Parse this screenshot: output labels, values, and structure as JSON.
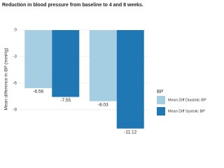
{
  "chart_data": {
    "type": "bar",
    "title": "Reduction in blood pressure from baseline to 4 and 8 weeks.",
    "y_label": "Mean difference in BP (mmHg)",
    "categories": [
      null,
      null
    ],
    "series": [
      {
        "name": "Mean Diff Diastolic BP",
        "color": "#a6cee3",
        "values": [
          -6.56,
          -8.03
        ]
      },
      {
        "name": "Mean Diff Systolic BP",
        "color": "#1f78b4",
        "values": [
          -7.55,
          -11.12
        ]
      }
    ],
    "legend_title": "BP",
    "legend": "right",
    "ylim": [
      -11.7,
      0.6
    ],
    "yticks": [
      0,
      -3,
      -6,
      -9
    ],
    "grid": true
  }
}
